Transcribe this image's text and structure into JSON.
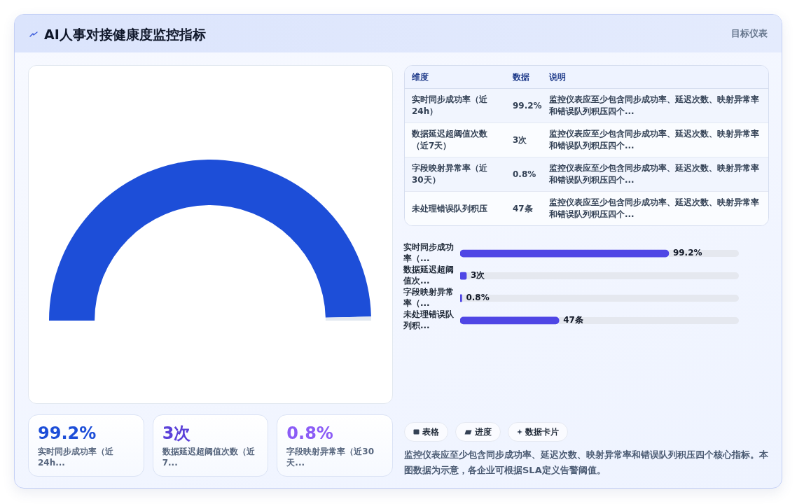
{
  "chart_data": [
    {
      "type": "other",
      "title": "AI人事对接健康度监控指标",
      "subtitle": "目标仪表"
    },
    {
      "type": "donut",
      "categories": [
        null,
        null
      ],
      "values": [
        99.2,
        0.8
      ],
      "colors": [
        "#1d4ed8",
        "#e2e8f0"
      ]
    },
    {
      "type": "other",
      "categories": [
        "维度",
        "数据",
        "说明"
      ],
      "cell_labels": [
        [
          "实时同步成功率（近24h）",
          "99.2%",
          "监控仪表应至少包含同步成功率、延迟次数、映射异常率和错误队列积压四个..."
        ],
        [
          "数据延迟超阈值次数（近7天）",
          "3次",
          "监控仪表应至少包含同步成功率、延迟次数、映射异常率和错误队列积压四个..."
        ],
        [
          "字段映射异常率（近30天）",
          "0.8%",
          "监控仪表应至少包含同步成功率、延迟次数、映射异常率和错误队列积压四个..."
        ],
        [
          "未处理错误队列积压",
          "47条",
          "监控仪表应至少包含同步成功率、延迟次数、映射异常率和错误队列积压四个..."
        ]
      ]
    },
    {
      "type": "bar",
      "orientation": "horizontal",
      "tick_labels": "y",
      "categories": [
        "实时同步成功率（...",
        "数据延迟超阈值次...",
        "字段映射异常率（...",
        "未处理错误队列积..."
      ],
      "values": [
        99.2,
        3,
        0.8,
        47
      ],
      "value_labels": [
        "99.2%",
        "3次",
        "0.8%",
        "47条"
      ],
      "color": "#4f46e5"
    },
    {
      "type": "other",
      "categories": [
        "实时同步成功率（近24h...",
        "数据延迟超阈值次数（近7...",
        "字段映射异常率（近30天..."
      ],
      "value_labels": [
        "99.2%",
        "3次",
        "0.8%"
      ]
    },
    {
      "type": "other",
      "categories": [
        "表格",
        "进度",
        "数据卡片"
      ],
      "annotations": [
        "监控仪表应至少包含同步成功率、延迟次数、映射异常率和错误队列积压四个核心指标。本图数据为示意，各企业可根据SLA定义告警阈值。"
      ]
    }
  ]
}
